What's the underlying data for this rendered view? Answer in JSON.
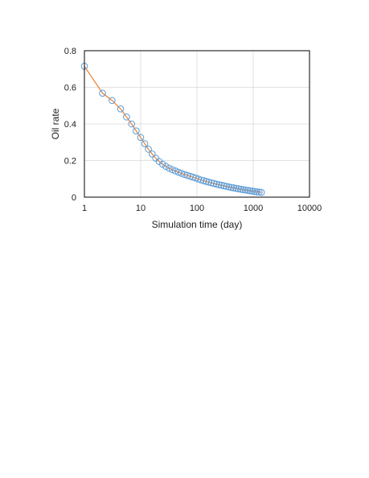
{
  "chart_data": {
    "type": "scatter",
    "title": "",
    "xlabel": "Simulation time (day)",
    "ylabel": "Oil rate",
    "xscale": "log",
    "xlim": [
      1,
      10000
    ],
    "ylim": [
      0,
      0.8
    ],
    "x_ticks": [
      "1",
      "10",
      "100",
      "1000",
      "10000"
    ],
    "y_ticks": [
      "0",
      "0.2",
      "0.4",
      "0.6",
      "0.8"
    ],
    "grid": "on",
    "legend": "none",
    "line_color": "#ED7D31",
    "marker_color": "#5B9BD5",
    "series": [
      {
        "x": [
          1,
          2.1,
          3.1,
          4.4,
          5.6,
          6.9,
          8.3,
          10,
          11.8,
          13.7,
          16,
          18.5,
          21.3,
          24.5,
          28,
          32,
          36.5,
          41.5,
          47,
          53,
          60,
          67.5,
          76,
          85,
          95,
          106,
          118,
          131,
          146,
          162,
          180,
          200,
          222,
          246,
          272,
          301,
          333,
          368,
          406,
          448,
          494,
          545,
          600,
          660,
          726,
          798,
          877,
          963,
          1057,
          1160,
          1272,
          1395
        ],
        "y": [
          0.715,
          0.568,
          0.528,
          0.482,
          0.438,
          0.4,
          0.362,
          0.326,
          0.292,
          0.262,
          0.236,
          0.213,
          0.195,
          0.18,
          0.168,
          0.158,
          0.15,
          0.143,
          0.136,
          0.13,
          0.124,
          0.119,
          0.114,
          0.109,
          0.104,
          0.099,
          0.094,
          0.09,
          0.086,
          0.082,
          0.078,
          0.075,
          0.071,
          0.068,
          0.065,
          0.062,
          0.059,
          0.056,
          0.053,
          0.051,
          0.048,
          0.046,
          0.043,
          0.041,
          0.039,
          0.037,
          0.035,
          0.033,
          0.031,
          0.029,
          0.028,
          0.026
        ]
      }
    ]
  }
}
